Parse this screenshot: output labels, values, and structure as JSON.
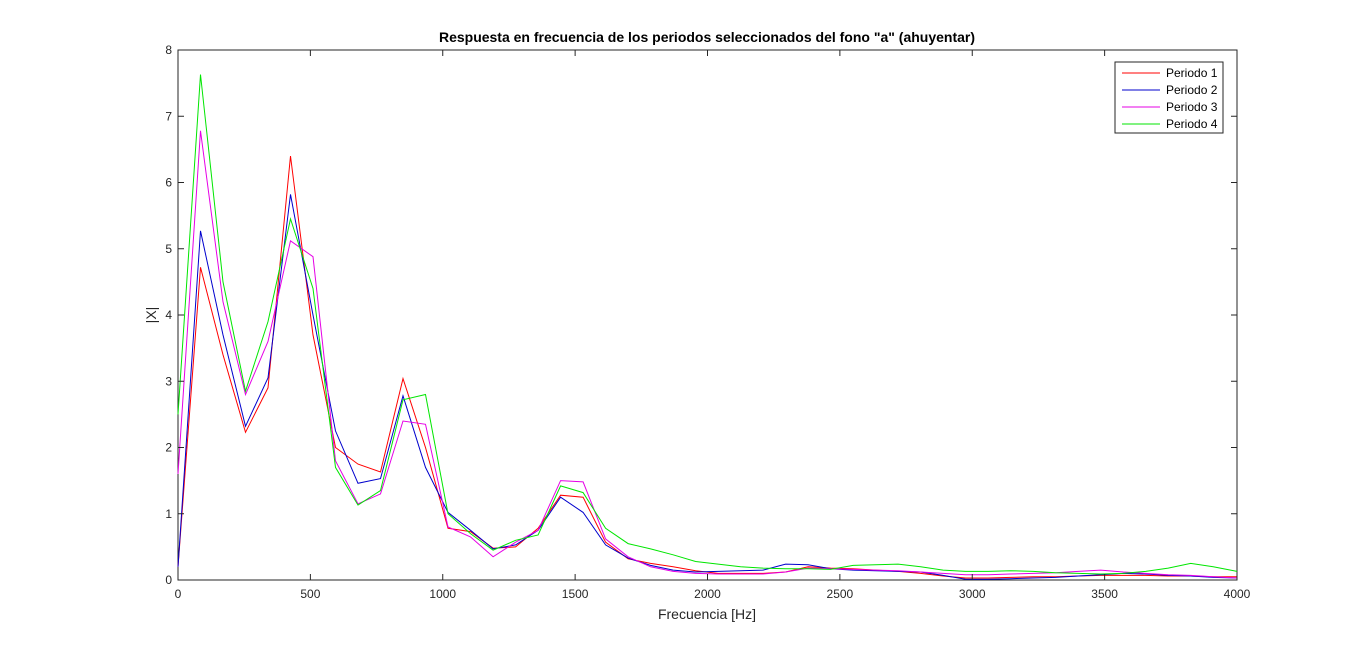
{
  "chart_data": {
    "type": "line",
    "title": "Respuesta en frecuencia de los periodos seleccionados del fono \"a\" (ahuyentar)",
    "xlabel": "Frecuencia [Hz]",
    "ylabel": "|X|",
    "xlim": [
      0,
      4000
    ],
    "ylim": [
      0,
      8
    ],
    "xticks": [
      0,
      500,
      1000,
      1500,
      2000,
      2500,
      3000,
      3500,
      4000
    ],
    "yticks": [
      0,
      1,
      2,
      3,
      4,
      5,
      6,
      7,
      8
    ],
    "grid": false,
    "legend_position": "top-right",
    "x": [
      0,
      85,
      170,
      255,
      340,
      425,
      510,
      595,
      680,
      765,
      850,
      935,
      1020,
      1105,
      1190,
      1275,
      1360,
      1445,
      1530,
      1615,
      1700,
      1785,
      1870,
      1955,
      2040,
      2125,
      2210,
      2295,
      2380,
      2465,
      2550,
      2635,
      2720,
      2805,
      2890,
      2975,
      3060,
      3145,
      3230,
      3315,
      3400,
      3485,
      3570,
      3655,
      3740,
      3825,
      3910,
      4000
    ],
    "series": [
      {
        "name": "Periodo 1",
        "color": "#ff0000",
        "values": [
          0.2,
          4.72,
          3.4,
          2.23,
          2.9,
          6.4,
          3.7,
          2.0,
          1.75,
          1.63,
          3.04,
          2.0,
          0.78,
          0.73,
          0.48,
          0.5,
          0.78,
          1.28,
          1.25,
          0.57,
          0.32,
          0.25,
          0.2,
          0.14,
          0.1,
          0.1,
          0.1,
          0.12,
          0.2,
          0.18,
          0.17,
          0.15,
          0.13,
          0.1,
          0.06,
          0.03,
          0.03,
          0.04,
          0.05,
          0.05,
          0.06,
          0.07,
          0.07,
          0.07,
          0.06,
          0.06,
          0.05,
          0.05
        ]
      },
      {
        "name": "Periodo 2",
        "color": "#0000cd",
        "values": [
          0.2,
          5.27,
          3.7,
          2.32,
          3.05,
          5.82,
          4.0,
          2.25,
          1.46,
          1.53,
          2.78,
          1.7,
          1.02,
          0.75,
          0.47,
          0.53,
          0.75,
          1.25,
          1.02,
          0.53,
          0.33,
          0.22,
          0.15,
          0.12,
          0.13,
          0.14,
          0.15,
          0.24,
          0.23,
          0.17,
          0.15,
          0.14,
          0.13,
          0.12,
          0.07,
          0.01,
          0.01,
          0.02,
          0.03,
          0.04,
          0.06,
          0.08,
          0.1,
          0.09,
          0.07,
          0.06,
          0.04,
          0.03
        ]
      },
      {
        "name": "Periodo 3",
        "color": "#e600e6",
        "values": [
          1.6,
          6.78,
          4.2,
          2.8,
          3.6,
          5.12,
          4.88,
          1.8,
          1.15,
          1.3,
          2.4,
          2.35,
          0.8,
          0.65,
          0.35,
          0.57,
          0.75,
          1.5,
          1.48,
          0.62,
          0.35,
          0.2,
          0.13,
          0.1,
          0.09,
          0.09,
          0.09,
          0.12,
          0.18,
          0.17,
          0.16,
          0.15,
          0.14,
          0.12,
          0.1,
          0.08,
          0.08,
          0.09,
          0.1,
          0.11,
          0.13,
          0.15,
          0.12,
          0.1,
          0.08,
          0.07,
          0.05,
          0.03
        ]
      },
      {
        "name": "Periodo 4",
        "color": "#00e600",
        "values": [
          2.5,
          7.63,
          4.5,
          2.85,
          3.9,
          5.45,
          4.4,
          1.7,
          1.13,
          1.35,
          2.72,
          2.8,
          1.0,
          0.7,
          0.45,
          0.6,
          0.68,
          1.42,
          1.32,
          0.78,
          0.55,
          0.47,
          0.38,
          0.28,
          0.24,
          0.2,
          0.18,
          0.17,
          0.17,
          0.16,
          0.22,
          0.23,
          0.24,
          0.2,
          0.15,
          0.13,
          0.13,
          0.14,
          0.13,
          0.11,
          0.1,
          0.09,
          0.1,
          0.13,
          0.18,
          0.25,
          0.2,
          0.13
        ]
      }
    ]
  }
}
